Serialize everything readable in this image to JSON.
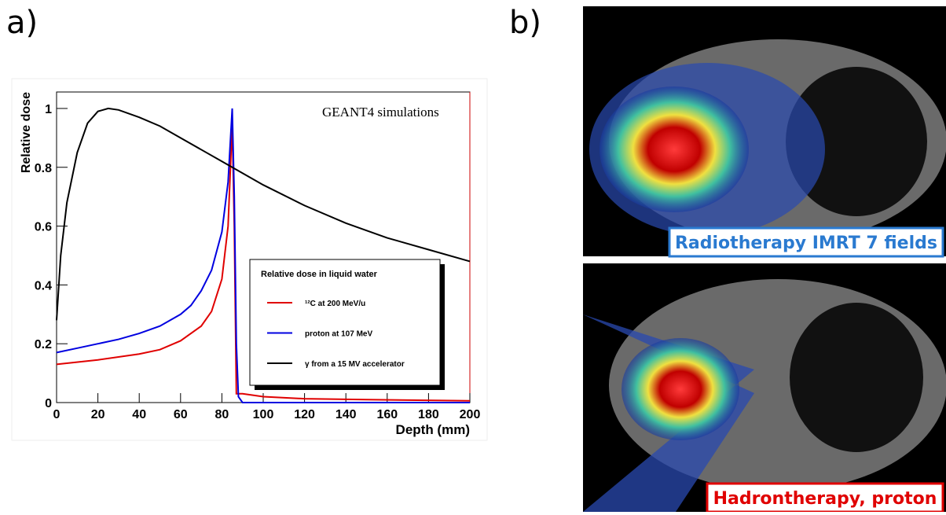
{
  "panels": [
    "a)",
    "b)"
  ],
  "images": [
    "Radiotherapy IMRT 7 fields",
    "Hadrontherapy, proton"
  ],
  "chart_data": {
    "type": "line",
    "annotation": "GEANT4 simulations",
    "xlabel": "Depth (mm)",
    "ylabel": "Relative dose",
    "legend_title": "Relative dose in liquid water",
    "xlim": [
      0,
      200
    ],
    "ylim": [
      0,
      1.056
    ],
    "xticks": [
      0,
      20,
      40,
      60,
      80,
      100,
      120,
      140,
      160,
      180,
      200
    ],
    "yticks": [
      0,
      0.2,
      0.4,
      0.6,
      0.8,
      1
    ],
    "series": [
      {
        "name": "¹²C at 200 MeV/u",
        "color": "#e00000",
        "x": [
          0,
          20,
          40,
          50,
          60,
          70,
          75,
          80,
          83,
          85,
          86,
          87,
          90,
          100,
          120,
          150,
          200
        ],
        "values": [
          0.13,
          0.145,
          0.165,
          0.18,
          0.21,
          0.26,
          0.31,
          0.42,
          0.6,
          0.95,
          0.6,
          0.03,
          0.03,
          0.02,
          0.013,
          0.01,
          0.006
        ]
      },
      {
        "name": "proton at 107 MeV",
        "color": "#0000e0",
        "x": [
          0,
          10,
          20,
          30,
          40,
          50,
          60,
          65,
          70,
          75,
          80,
          83,
          85,
          86,
          87,
          88,
          90,
          200
        ],
        "values": [
          0.17,
          0.185,
          0.2,
          0.215,
          0.235,
          0.26,
          0.3,
          0.33,
          0.38,
          0.45,
          0.58,
          0.75,
          1.0,
          0.7,
          0.2,
          0.02,
          0,
          0
        ]
      },
      {
        "name": "γ from a 15 MV accelerator",
        "color": "#000000",
        "x": [
          0,
          2,
          5,
          10,
          15,
          20,
          25,
          30,
          40,
          50,
          60,
          70,
          80,
          90,
          100,
          120,
          140,
          160,
          180,
          200
        ],
        "values": [
          0.28,
          0.5,
          0.68,
          0.85,
          0.95,
          0.99,
          1.0,
          0.995,
          0.97,
          0.94,
          0.9,
          0.86,
          0.82,
          0.78,
          0.74,
          0.67,
          0.61,
          0.56,
          0.52,
          0.48
        ]
      }
    ]
  }
}
